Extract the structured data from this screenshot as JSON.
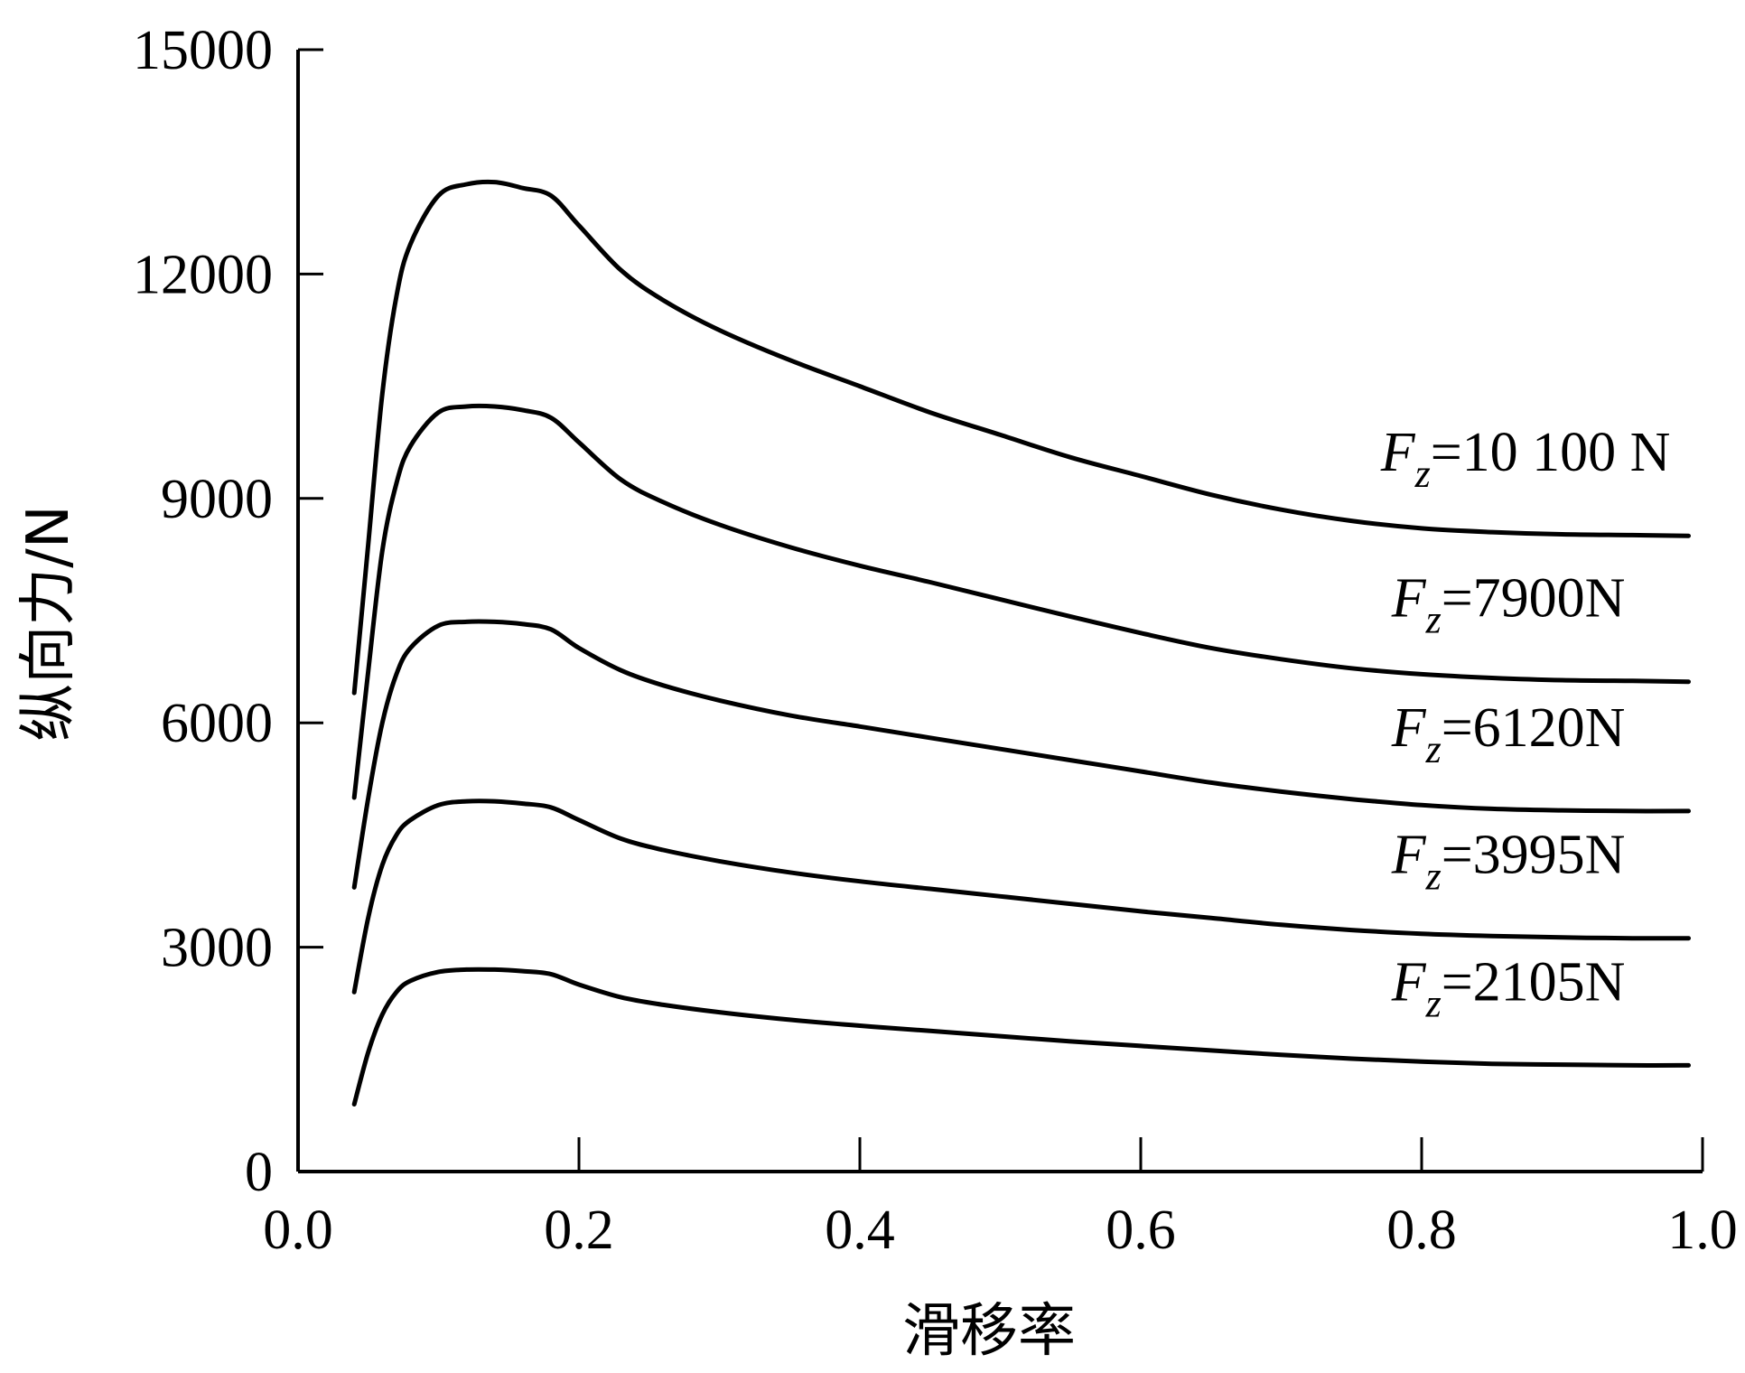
{
  "chart_data": {
    "type": "line",
    "xlabel": "滑移率",
    "ylabel": "纵向力/N",
    "xlim": [
      0.0,
      1.0
    ],
    "ylim": [
      0,
      15000
    ],
    "x_ticks": [
      "0.0",
      "0.2",
      "0.4",
      "0.6",
      "0.8",
      "1.0"
    ],
    "y_ticks": [
      "0",
      "3000",
      "6000",
      "9000",
      "12000",
      "15000"
    ],
    "grid": false,
    "series": [
      {
        "label_symbol": "F",
        "label_sub": "z",
        "label_value": "=10 100 N",
        "x": [
          0.04,
          0.05,
          0.06,
          0.07,
          0.08,
          0.1,
          0.12,
          0.14,
          0.16,
          0.18,
          0.2,
          0.23,
          0.26,
          0.3,
          0.35,
          0.4,
          0.45,
          0.5,
          0.55,
          0.6,
          0.65,
          0.7,
          0.75,
          0.8,
          0.85,
          0.9,
          0.95,
          0.99
        ],
        "y": [
          6400,
          8400,
          10400,
          11700,
          12400,
          13050,
          13200,
          13230,
          13150,
          13050,
          12650,
          12050,
          11650,
          11250,
          10850,
          10500,
          10150,
          9850,
          9550,
          9300,
          9050,
          8850,
          8700,
          8600,
          8550,
          8520,
          8510,
          8500
        ]
      },
      {
        "label_symbol": "F",
        "label_sub": "z",
        "label_value": "=7900N",
        "x": [
          0.04,
          0.05,
          0.06,
          0.07,
          0.08,
          0.1,
          0.12,
          0.14,
          0.16,
          0.18,
          0.2,
          0.23,
          0.26,
          0.3,
          0.35,
          0.4,
          0.45,
          0.5,
          0.55,
          0.6,
          0.65,
          0.7,
          0.75,
          0.8,
          0.85,
          0.9,
          0.95,
          0.99
        ],
        "y": [
          5000,
          6700,
          8300,
          9200,
          9700,
          10150,
          10230,
          10230,
          10180,
          10080,
          9750,
          9250,
          8950,
          8650,
          8350,
          8100,
          7880,
          7650,
          7420,
          7200,
          7000,
          6850,
          6730,
          6650,
          6600,
          6570,
          6560,
          6550
        ]
      },
      {
        "label_symbol": "F",
        "label_sub": "z",
        "label_value": "=6120N",
        "x": [
          0.04,
          0.05,
          0.06,
          0.07,
          0.08,
          0.1,
          0.12,
          0.14,
          0.16,
          0.18,
          0.2,
          0.23,
          0.26,
          0.3,
          0.35,
          0.4,
          0.45,
          0.5,
          0.55,
          0.6,
          0.65,
          0.7,
          0.75,
          0.8,
          0.85,
          0.9,
          0.95,
          0.99
        ],
        "y": [
          3800,
          5000,
          6000,
          6650,
          7000,
          7300,
          7350,
          7350,
          7320,
          7250,
          7000,
          6700,
          6500,
          6300,
          6100,
          5950,
          5800,
          5650,
          5500,
          5350,
          5200,
          5080,
          4980,
          4900,
          4850,
          4830,
          4820,
          4820
        ]
      },
      {
        "label_symbol": "F",
        "label_sub": "z",
        "label_value": "=3995N",
        "x": [
          0.04,
          0.05,
          0.06,
          0.07,
          0.08,
          0.1,
          0.12,
          0.14,
          0.16,
          0.18,
          0.2,
          0.23,
          0.26,
          0.3,
          0.35,
          0.4,
          0.45,
          0.5,
          0.55,
          0.6,
          0.65,
          0.7,
          0.75,
          0.8,
          0.85,
          0.9,
          0.95,
          0.99
        ],
        "y": [
          2400,
          3400,
          4100,
          4500,
          4700,
          4900,
          4950,
          4950,
          4920,
          4870,
          4700,
          4450,
          4300,
          4150,
          4000,
          3880,
          3780,
          3680,
          3580,
          3480,
          3390,
          3300,
          3230,
          3180,
          3150,
          3130,
          3120,
          3120
        ]
      },
      {
        "label_symbol": "F",
        "label_sub": "z",
        "label_value": "=2105N",
        "x": [
          0.04,
          0.05,
          0.06,
          0.07,
          0.08,
          0.1,
          0.12,
          0.14,
          0.16,
          0.18,
          0.2,
          0.23,
          0.26,
          0.3,
          0.35,
          0.4,
          0.45,
          0.5,
          0.55,
          0.6,
          0.65,
          0.7,
          0.75,
          0.8,
          0.85,
          0.9,
          0.95,
          0.99
        ],
        "y": [
          900,
          1600,
          2100,
          2400,
          2550,
          2670,
          2700,
          2700,
          2680,
          2640,
          2500,
          2330,
          2230,
          2130,
          2030,
          1950,
          1880,
          1810,
          1740,
          1680,
          1620,
          1560,
          1510,
          1470,
          1440,
          1430,
          1420,
          1420
        ]
      }
    ]
  }
}
